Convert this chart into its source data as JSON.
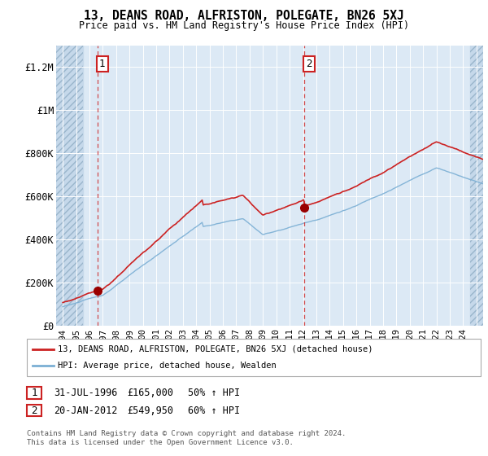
{
  "title": "13, DEANS ROAD, ALFRISTON, POLEGATE, BN26 5XJ",
  "subtitle": "Price paid vs. HM Land Registry's House Price Index (HPI)",
  "background_color": "#dce9f5",
  "sale1_date": 1996.58,
  "sale1_price": 165000,
  "sale2_date": 2012.08,
  "sale2_price": 549950,
  "red_line_color": "#cc2222",
  "blue_line_color": "#7bafd4",
  "annotation_box_color": "#cc2222",
  "xmin": 1993.5,
  "xmax": 2025.5,
  "ymin": 0,
  "ymax": 1300000,
  "yticks": [
    0,
    200000,
    400000,
    600000,
    800000,
    1000000,
    1200000
  ],
  "ytick_labels": [
    "£0",
    "£200K",
    "£400K",
    "£600K",
    "£800K",
    "£1M",
    "£1.2M"
  ],
  "legend_line1": "13, DEANS ROAD, ALFRISTON, POLEGATE, BN26 5XJ (detached house)",
  "legend_line2": "HPI: Average price, detached house, Wealden",
  "annot1_text": "1",
  "annot1_date": "31-JUL-1996",
  "annot1_price": "£165,000",
  "annot1_pct": "50% ↑ HPI",
  "annot2_text": "2",
  "annot2_date": "20-JAN-2012",
  "annot2_price": "£549,950",
  "annot2_pct": "60% ↑ HPI",
  "footer": "Contains HM Land Registry data © Crown copyright and database right 2024.\nThis data is licensed under the Open Government Licence v3.0."
}
